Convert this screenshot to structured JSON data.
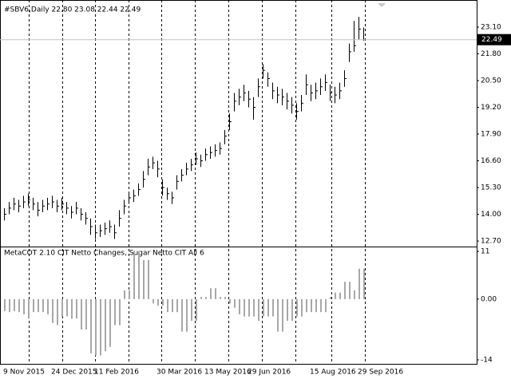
{
  "chart_data": [
    {
      "type": "ohlc",
      "title": "#SBV6,Daily  22.80 23.08 22.44 22.49",
      "color": "#000000",
      "categories": [
        "9 Nov 2015",
        null,
        null,
        null,
        null,
        null,
        null,
        null,
        null,
        null,
        "24 Dec 2015",
        null,
        null,
        null,
        null,
        null,
        null,
        null,
        null,
        "11 Feb 2016",
        null,
        null,
        null,
        null,
        null,
        null,
        null,
        null,
        null,
        null,
        null,
        null,
        "30 Mar 2016",
        null,
        null,
        null,
        null,
        null,
        null,
        null,
        null,
        null,
        "13 May 2016",
        null,
        null,
        null,
        null,
        null,
        null,
        null,
        null,
        "29 Jun 2016",
        null,
        null,
        null,
        null,
        null,
        null,
        null,
        null,
        null,
        null,
        null,
        null,
        "15 Aug 2016",
        null,
        null,
        null,
        null,
        null,
        null,
        null,
        null,
        null,
        "29 Sep 2016",
        null
      ],
      "high": [
        14.3,
        14.6,
        14.8,
        14.7,
        14.9,
        15.0,
        14.8,
        14.6,
        14.7,
        14.8,
        14.9,
        14.7,
        14.8,
        14.6,
        14.4,
        14.6,
        14.3,
        14.1,
        13.8,
        13.5,
        13.5,
        13.6,
        13.7,
        13.5,
        14.2,
        14.7,
        15.1,
        15.2,
        15.5,
        16.1,
        16.7,
        16.8,
        16.6,
        15.7,
        15.3,
        15.1,
        15.9,
        16.2,
        16.5,
        16.7,
        17.0,
        16.9,
        17.2,
        17.3,
        17.4,
        17.5,
        18.1,
        18.9,
        19.9,
        20.1,
        20.3,
        20.0,
        19.7,
        20.6,
        21.3,
        20.9,
        20.4,
        20.2,
        20.1,
        19.9,
        19.7,
        19.4,
        19.8,
        20.8,
        20.3,
        20.4,
        20.6,
        20.8,
        20.3,
        20.2,
        20.4,
        21.0,
        22.3,
        23.4,
        23.6,
        23.08
      ],
      "low": [
        13.7,
        14.0,
        14.2,
        14.1,
        14.3,
        14.4,
        14.2,
        13.9,
        14.1,
        14.2,
        14.3,
        14.1,
        14.2,
        14.0,
        13.8,
        14.0,
        13.7,
        13.5,
        13.0,
        12.8,
        12.9,
        13.0,
        13.1,
        12.8,
        13.4,
        14.0,
        14.5,
        14.6,
        14.9,
        15.3,
        15.9,
        16.2,
        15.8,
        14.9,
        14.7,
        14.5,
        15.2,
        15.6,
        15.9,
        16.1,
        16.4,
        16.3,
        16.6,
        16.7,
        16.8,
        16.9,
        17.4,
        18.1,
        19.0,
        19.3,
        19.5,
        19.2,
        18.6,
        19.7,
        20.6,
        20.2,
        19.6,
        19.4,
        19.3,
        19.1,
        18.9,
        18.6,
        19.0,
        19.8,
        19.5,
        19.6,
        19.8,
        20.0,
        19.5,
        19.4,
        19.6,
        20.2,
        21.4,
        21.9,
        22.5,
        22.44
      ],
      "close": [
        14.0,
        14.3,
        14.5,
        14.4,
        14.6,
        14.7,
        14.5,
        14.2,
        14.4,
        14.5,
        14.6,
        14.4,
        14.5,
        14.3,
        14.1,
        14.3,
        14.0,
        13.8,
        13.4,
        13.1,
        13.2,
        13.3,
        13.4,
        13.1,
        13.8,
        14.4,
        14.8,
        14.9,
        15.2,
        15.7,
        16.3,
        16.5,
        16.2,
        15.3,
        15.0,
        14.8,
        15.6,
        15.9,
        16.2,
        16.4,
        16.7,
        16.6,
        16.9,
        17.0,
        17.1,
        17.2,
        17.8,
        18.5,
        19.5,
        19.7,
        19.9,
        19.6,
        19.2,
        20.2,
        21.0,
        20.6,
        20.0,
        19.8,
        19.7,
        19.5,
        19.3,
        19.0,
        19.4,
        20.3,
        19.9,
        20.0,
        20.2,
        20.4,
        19.9,
        19.8,
        20.0,
        20.6,
        21.9,
        22.2,
        23.0,
        22.49
      ],
      "last_price": 22.49,
      "ylim": [
        12.47,
        24.34
      ],
      "yticks": [
        {
          "value": 23.1,
          "label": "23.10"
        },
        {
          "value": 21.8,
          "label": "21.80"
        },
        {
          "value": 20.5,
          "label": "20.50"
        },
        {
          "value": 19.2,
          "label": "19.20"
        },
        {
          "value": 17.9,
          "label": "17.90"
        },
        {
          "value": 16.6,
          "label": "16.60"
        },
        {
          "value": 15.3,
          "label": "15.30"
        },
        {
          "value": 14.0,
          "label": "14.00"
        },
        {
          "value": 12.7,
          "label": "12.70"
        }
      ]
    },
    {
      "type": "bar",
      "title": "MetaCOT 2.10 CIT Netto Changes, Sugar Netto CIT All 6",
      "color": "#a8a8a8",
      "values": [
        -2.8,
        -3,
        -2.8,
        -3,
        -3.5,
        -4.5,
        -3,
        -3,
        -3,
        -3.5,
        -5.5,
        -6,
        -4,
        -4,
        -4.5,
        -4.5,
        -7,
        -7,
        -12.5,
        -13,
        -13,
        -12,
        -11,
        -6,
        -6,
        2,
        2,
        11,
        11,
        9,
        9,
        -1,
        -1.5,
        -1.5,
        -3,
        -3,
        -3,
        -7.5,
        -7.5,
        -5,
        -5,
        0.5,
        0.5,
        2.5,
        2.5,
        0.5,
        0.5,
        -1,
        -2,
        -3.5,
        -4,
        -4,
        -4,
        -5,
        -4,
        -4,
        -4,
        -7.5,
        -7.5,
        -5,
        -5,
        -4,
        -4,
        -3,
        -3,
        -3,
        -3,
        -3,
        0.5,
        1.5,
        1.5,
        4,
        4,
        2,
        7,
        7
      ],
      "ylim": [
        -14.92,
        11.92
      ],
      "yticks": [
        11,
        {
          "value": 0,
          "label": "0.00"
        },
        -14
      ]
    }
  ]
}
